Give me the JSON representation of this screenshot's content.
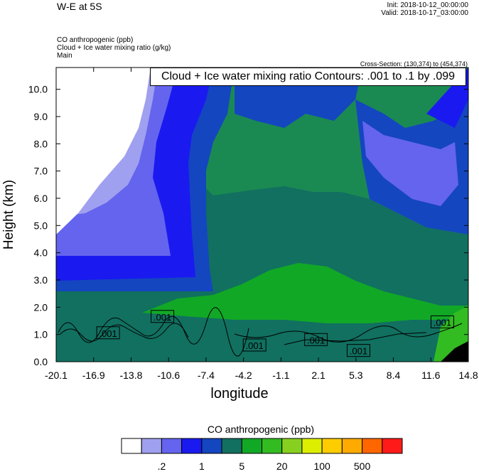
{
  "header": {
    "title": "W-E at 5S",
    "init": "Init: 2018-10-12_00:00:00",
    "valid": "Valid: 2018-10-17_03:00:00",
    "var1": "CO anthropogenic   (ppb)",
    "var2": "Cloud + Ice water mixing ratio   (g/kg)",
    "var3": "Main",
    "cross_section": "Cross-Section: (130,374) to (454,374)"
  },
  "contour_banner": "Cloud + Ice water mixing ratio Contours: .001 to .1 by .099",
  "colorbar": {
    "title": "CO anthropogenic  (ppb)",
    "colors": [
      "#ffffff",
      "#a0a0f0",
      "#6464ee",
      "#1a1af0",
      "#1446c0",
      "#117060",
      "#11a826",
      "#33bb22",
      "#88d020",
      "#ddee00",
      "#ffcc00",
      "#ffaa00",
      "#ff6600",
      "#ff1a1a"
    ],
    "labels": [
      ".2",
      "1",
      "5",
      "20",
      "100",
      "500"
    ]
  },
  "chart_data": {
    "type": "heatmap",
    "title": "",
    "xlabel": "longitude",
    "ylabel": "Height (km)",
    "xlim": [
      -20.1,
      14.8
    ],
    "ylim": [
      0.0,
      10.8
    ],
    "x_tick_labels": [
      "-20.1",
      "-16.9",
      "-13.8",
      "-10.6",
      "-7.4",
      "-4.2",
      "-1.1",
      "2.1",
      "5.3",
      "8.4",
      "11.6",
      "14.8"
    ],
    "y_tick_labels": [
      "0.0",
      "1.0",
      "2.0",
      "3.0",
      "4.0",
      "5.0",
      "6.0",
      "7.0",
      "8.0",
      "9.0",
      "10.0"
    ],
    "y_tick_values": [
      0,
      1,
      2,
      3,
      4,
      5,
      6,
      7,
      8,
      9,
      10
    ],
    "contour_labels": [
      {
        "text": ".001",
        "lon": -11.1,
        "km": 1.65
      },
      {
        "text": ".001",
        "lon": -15.7,
        "km": 1.05
      },
      {
        "text": ".001",
        "lon": -3.3,
        "km": 0.6
      },
      {
        "text": ".001",
        "lon": 1.9,
        "km": 0.8
      },
      {
        "text": ".001",
        "lon": 5.5,
        "km": 0.4
      },
      {
        "text": ".001",
        "lon": 12.6,
        "km": 1.45
      }
    ]
  }
}
